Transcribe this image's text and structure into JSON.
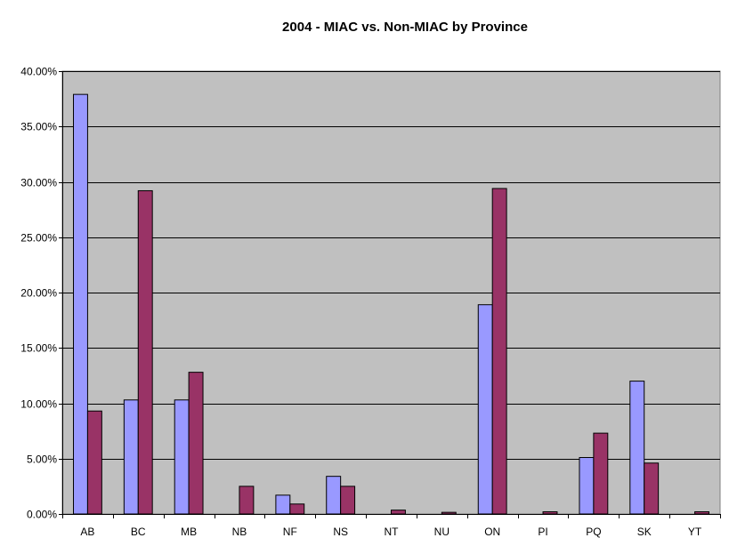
{
  "chart_data": {
    "type": "bar",
    "title": "2004 - MIAC vs. Non-MIAC by Province",
    "xlabel": "",
    "ylabel": "",
    "categories": [
      "AB",
      "BC",
      "MB",
      "NB",
      "NF",
      "NS",
      "NT",
      "NU",
      "ON",
      "PI",
      "PQ",
      "SK",
      "YT"
    ],
    "series": [
      {
        "values": [
          37.9,
          10.3,
          10.3,
          0.0,
          1.7,
          3.4,
          0.0,
          0.0,
          18.9,
          0.0,
          5.1,
          12.0,
          0.0
        ]
      },
      {
        "values": [
          9.3,
          29.2,
          12.8,
          2.5,
          0.9,
          2.5,
          0.35,
          0.15,
          29.4,
          0.2,
          7.3,
          4.6,
          0.2
        ]
      }
    ],
    "ylim": [
      0,
      40
    ],
    "yticks": [
      0,
      5,
      10,
      15,
      20,
      25,
      30,
      35,
      40
    ],
    "ytick_labels": [
      "0.00%",
      "5.00%",
      "10.00%",
      "15.00%",
      "20.00%",
      "25.00%",
      "30.00%",
      "35.00%",
      "40.00%"
    ],
    "grid": true,
    "legend": "none",
    "colors": {
      "plot_background": "#c0c0c0",
      "series_1": "#9999ff",
      "series_2": "#993366",
      "gridline": "#000000"
    }
  }
}
